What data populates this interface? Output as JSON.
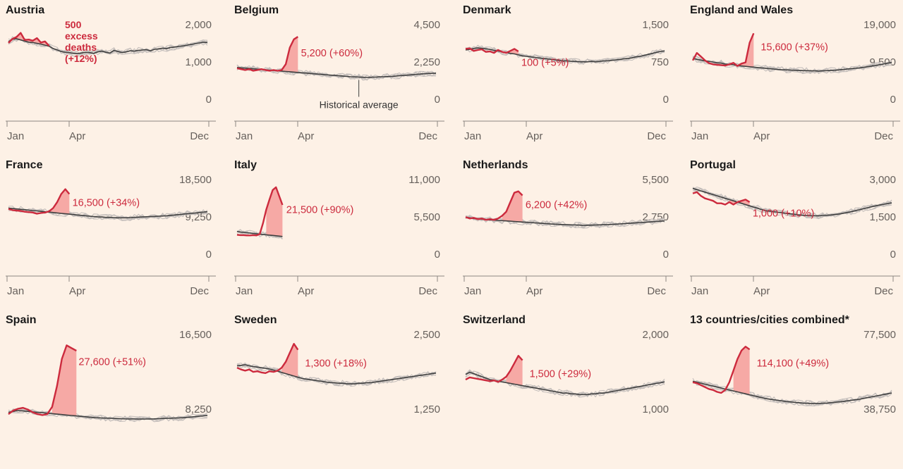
{
  "colors": {
    "background": "#fdf1e6",
    "current_year": "#cc2a3d",
    "excess_fill": "#f6a9a5",
    "average": "#3f3f3f",
    "history": "#c4bebb",
    "axis_text": "#66605c"
  },
  "chart_data": [
    {
      "type": "line",
      "title": "Austria",
      "x_ticks": [
        "Jan",
        "Apr",
        "Dec"
      ],
      "y_ticks": [
        0,
        1000,
        2000
      ],
      "ylim": [
        0,
        2000
      ],
      "peak_week": 3,
      "series": [
        {
          "values": [
            1680,
            1790,
            1840,
            1950,
            1760,
            1770,
            1740,
            1810,
            1690,
            1720,
            1600
          ]
        },
        {
          "values": [
            1720,
            1780,
            1790,
            1760,
            1730,
            1700,
            1690,
            1670,
            1650,
            1620,
            1590,
            1530,
            1490,
            1450,
            1430,
            1420,
            1400,
            1390,
            1410,
            1430,
            1420,
            1400,
            1440,
            1460,
            1430,
            1410,
            1480,
            1450,
            1420,
            1440,
            1470,
            1460,
            1480,
            1490,
            1500,
            1470,
            1510,
            1520,
            1540,
            1530,
            1560,
            1570,
            1590,
            1600,
            1620,
            1640,
            1660,
            1680,
            1700,
            1690
          ]
        }
      ],
      "annotation": {
        "lines": [
          "500",
          "excess",
          "deaths",
          "(+12%)"
        ]
      },
      "grid": false
    },
    {
      "type": "line",
      "title": "Belgium",
      "x_ticks": [
        "Jan",
        "Apr",
        "Dec"
      ],
      "y_ticks": [
        0,
        2250,
        4500
      ],
      "ylim": [
        0,
        4500
      ],
      "peak_week": 14,
      "series": [
        {
          "values": [
            2250,
            2200,
            2150,
            2200,
            2100,
            2150,
            2200,
            2150,
            2100,
            2150,
            2100,
            2150,
            2500,
            3500,
            4000,
            4150
          ]
        },
        {
          "values": [
            2300,
            2280,
            2260,
            2240,
            2220,
            2200,
            2180,
            2160,
            2140,
            2120,
            2100,
            2080,
            2060,
            2040,
            2020,
            2000,
            1980,
            1960,
            1940,
            1920,
            1900,
            1880,
            1860,
            1840,
            1820,
            1800,
            1780,
            1760,
            1740,
            1730,
            1720,
            1710,
            1700,
            1710,
            1720,
            1730,
            1740,
            1750,
            1760,
            1780,
            1800,
            1820,
            1840,
            1860,
            1880,
            1900,
            1920,
            1940,
            1950,
            1950
          ]
        }
      ],
      "annotation": {
        "lines": [
          "5,200 (+60%)"
        ],
        "callout": "Historical average"
      },
      "grid": false
    },
    {
      "type": "line",
      "title": "Denmark",
      "x_ticks": [
        "Jan",
        "Apr",
        "Dec"
      ],
      "y_ticks": [
        0,
        750,
        1500
      ],
      "ylim": [
        0,
        1500
      ],
      "peak_week": 12,
      "series": [
        {
          "values": [
            1140,
            1150,
            1100,
            1120,
            1130,
            1080,
            1090,
            1060,
            1120,
            1080,
            1060,
            1100,
            1140,
            1090
          ]
        },
        {
          "values": [
            1120,
            1130,
            1150,
            1160,
            1150,
            1140,
            1130,
            1110,
            1100,
            1080,
            1070,
            1050,
            1040,
            1020,
            1000,
            990,
            980,
            970,
            960,
            950,
            940,
            930,
            920,
            910,
            900,
            900,
            890,
            890,
            880,
            880,
            880,
            890,
            880,
            890,
            900,
            900,
            910,
            920,
            930,
            940,
            950,
            960,
            980,
            990,
            1010,
            1030,
            1050,
            1070,
            1090,
            1100
          ]
        }
      ],
      "annotation": {
        "lines": [
          "100 (+5%)"
        ]
      },
      "grid": false
    },
    {
      "type": "line",
      "title": "England and Wales",
      "x_ticks": [
        "Jan",
        "Apr",
        "Dec"
      ],
      "y_ticks": [
        0,
        9500,
        19000
      ],
      "ylim": [
        0,
        19000
      ],
      "peak_week": 15,
      "series": [
        {
          "values": [
            11500,
            13400,
            12500,
            11500,
            10800,
            10500,
            10400,
            10300,
            10200,
            10500,
            10900,
            10100,
            10700,
            11000,
            16000,
            18400
          ]
        },
        {
          "values": [
            12000,
            11800,
            11600,
            11400,
            11300,
            11100,
            10900,
            10800,
            10600,
            10500,
            10400,
            10200,
            10100,
            10000,
            9900,
            9800,
            9700,
            9600,
            9500,
            9400,
            9300,
            9200,
            9150,
            9100,
            9050,
            9000,
            8950,
            8900,
            8900,
            8850,
            8850,
            8800,
            8850,
            8900,
            8950,
            9000,
            9100,
            9200,
            9300,
            9400,
            9500,
            9600,
            9750,
            9900,
            10050,
            10200,
            10400,
            10600,
            10800,
            11000
          ]
        }
      ],
      "annotation": {
        "lines": [
          "15,600 (+37%)"
        ]
      },
      "grid": false
    },
    {
      "type": "line",
      "title": "France",
      "x_ticks": [
        "Jan",
        "Apr",
        "Dec"
      ],
      "y_ticks": [
        0,
        9250,
        18500
      ],
      "ylim": [
        0,
        18500
      ],
      "peak_week": 14,
      "series": [
        {
          "values": [
            12800,
            12500,
            12400,
            12300,
            12100,
            12000,
            11900,
            11600,
            11800,
            11900,
            12200,
            13000,
            14500,
            16500,
            17700,
            16500
          ]
        },
        {
          "values": [
            13000,
            12900,
            12800,
            12700,
            12600,
            12500,
            12400,
            12300,
            12200,
            12100,
            12000,
            11900,
            11800,
            11700,
            11600,
            11500,
            11400,
            11300,
            11200,
            11100,
            11000,
            10900,
            10800,
            10800,
            10700,
            10700,
            10650,
            10600,
            10600,
            10600,
            10650,
            10700,
            10750,
            10800,
            10850,
            10900,
            10950,
            11000,
            11050,
            11100,
            11200,
            11300,
            11400,
            11500,
            11600,
            11700,
            11800,
            11900,
            12000,
            12100
          ]
        }
      ],
      "annotation": {
        "lines": [
          "16,500 (+34%)"
        ]
      },
      "grid": false
    },
    {
      "type": "line",
      "title": "Italy",
      "x_ticks": [
        "Jan",
        "Apr",
        "Dec"
      ],
      "y_ticks": [
        0,
        5500,
        11000
      ],
      "ylim": [
        0,
        11000
      ],
      "peak_week": 13,
      "series": [
        {
          "values": [
            3800,
            3750,
            3750,
            3700,
            3700,
            3750,
            3700,
            3900,
            5500,
            7500,
            9000,
            10400,
            10800,
            9500,
            8200
          ]
        },
        {
          "values": [
            4300,
            4200,
            4150,
            4100,
            4050,
            4000,
            3950,
            3900,
            3850,
            3800,
            3750,
            3700,
            3650,
            3600,
            3550
          ]
        }
      ],
      "annotation": {
        "lines": [
          "21,500 (+90%)"
        ]
      },
      "grid": false
    },
    {
      "type": "line",
      "title": "Netherlands",
      "x_ticks": [
        "Jan",
        "Apr",
        "Dec"
      ],
      "y_ticks": [
        0,
        2750,
        5500
      ],
      "ylim": [
        0,
        5500
      ],
      "peak_week": 13,
      "series": [
        {
          "values": [
            3200,
            3100,
            3150,
            3050,
            3100,
            3000,
            3050,
            3000,
            3100,
            3300,
            3600,
            4300,
            5000,
            5100,
            4800
          ]
        },
        {
          "values": [
            3200,
            3150,
            3100,
            3080,
            3050,
            3020,
            3000,
            2980,
            2960,
            2940,
            2920,
            2900,
            2880,
            2860,
            2840,
            2820,
            2800,
            2780,
            2760,
            2740,
            2720,
            2700,
            2680,
            2660,
            2650,
            2640,
            2630,
            2620,
            2610,
            2600,
            2600,
            2610,
            2620,
            2630,
            2640,
            2650,
            2660,
            2680,
            2700,
            2720,
            2740,
            2760,
            2780,
            2800,
            2820,
            2840,
            2860,
            2880,
            2900,
            2920
          ]
        }
      ],
      "annotation": {
        "lines": [
          "6,200 (+42%)"
        ]
      },
      "grid": false
    },
    {
      "type": "line",
      "title": "Portugal",
      "x_ticks": [
        "Jan",
        "Apr",
        "Dec"
      ],
      "y_ticks": [
        0,
        1500,
        3000
      ],
      "ylim": [
        0,
        3000
      ],
      "peak_week": 13,
      "series": [
        {
          "values": [
            2700,
            2750,
            2600,
            2500,
            2450,
            2400,
            2300,
            2300,
            2250,
            2350,
            2250,
            2350,
            2400,
            2450,
            2350
          ]
        },
        {
          "values": [
            2900,
            2850,
            2800,
            2750,
            2700,
            2650,
            2600,
            2550,
            2500,
            2450,
            2400,
            2350,
            2300,
            2250,
            2200,
            2150,
            2100,
            2050,
            2000,
            1980,
            1960,
            1940,
            1920,
            1900,
            1880,
            1860,
            1840,
            1820,
            1810,
            1800,
            1800,
            1800,
            1810,
            1820,
            1830,
            1850,
            1870,
            1900,
            1930,
            1960,
            2000,
            2040,
            2080,
            2120,
            2160,
            2200,
            2230,
            2260,
            2290,
            2320
          ]
        }
      ],
      "annotation": {
        "lines": [
          "1,000 (+10%)"
        ]
      },
      "grid": false
    },
    {
      "type": "line",
      "title": "Spain",
      "x_ticks": [
        "Jan",
        "Apr",
        "Dec"
      ],
      "y_ticks": [
        8250,
        16500
      ],
      "ylim": [
        8250,
        16500
      ],
      "peak_week": 13,
      "series": [
        {
          "values": [
            8400,
            8800,
            9000,
            9100,
            8900,
            8600,
            8400,
            8300,
            8400,
            9200,
            11500,
            14500,
            16000,
            15700,
            15400
          ]
        },
        {
          "values": [
            8600,
            8700,
            8800,
            8750,
            8700,
            8650,
            8600,
            8550,
            8500,
            8450,
            8400,
            8350,
            8300,
            8250,
            8200,
            8150,
            8100,
            8050,
            8000,
            7980,
            7960,
            7940,
            7920,
            7900,
            7880,
            7870,
            7860,
            7850,
            7860,
            7870,
            7880,
            7900,
            7920,
            7940,
            7960,
            7980,
            8000,
            8050,
            8100,
            8150,
            8200,
            8250
          ]
        }
      ],
      "annotation": {
        "lines": [
          "27,600 (+51%)"
        ]
      },
      "grid": false
    },
    {
      "type": "line",
      "title": "Sweden",
      "x_ticks": [
        "Jan",
        "Apr",
        "Dec"
      ],
      "y_ticks": [
        1250,
        2500
      ],
      "ylim": [
        1250,
        2500
      ],
      "peak_week": 15,
      "series": [
        {
          "values": [
            2050,
            2020,
            2000,
            2020,
            1980,
            1990,
            1970,
            1960,
            1990,
            1980,
            2000,
            2050,
            2150,
            2300,
            2450,
            2350
          ]
        },
        {
          "values": [
            2080,
            2090,
            2100,
            2080,
            2070,
            2060,
            2050,
            2040,
            2030,
            2010,
            1990,
            1970,
            1950,
            1930,
            1910,
            1890,
            1870,
            1860,
            1850,
            1840,
            1830,
            1820,
            1810,
            1800,
            1800,
            1790,
            1790,
            1780,
            1780,
            1780,
            1790,
            1790,
            1800,
            1800,
            1810,
            1820,
            1830,
            1840,
            1850,
            1860,
            1870,
            1880,
            1890,
            1900,
            1910,
            1920,
            1930,
            1940,
            1950,
            1960
          ]
        }
      ],
      "annotation": {
        "lines": [
          "1,300 (+18%)"
        ]
      },
      "grid": false
    },
    {
      "type": "line",
      "title": "Switzerland",
      "x_ticks": [
        "Jan",
        "Apr",
        "Dec"
      ],
      "y_ticks": [
        1000,
        2000
      ],
      "ylim": [
        1000,
        2000
      ],
      "peak_week": 14,
      "series": [
        {
          "values": [
            1480,
            1510,
            1500,
            1490,
            1480,
            1470,
            1460,
            1470,
            1450,
            1480,
            1520,
            1600,
            1700,
            1800,
            1740
          ]
        },
        {
          "values": [
            1550,
            1580,
            1560,
            1540,
            1520,
            1500,
            1480,
            1470,
            1460,
            1450,
            1440,
            1430,
            1420,
            1410,
            1400,
            1390,
            1380,
            1370,
            1360,
            1350,
            1340,
            1330,
            1320,
            1310,
            1300,
            1300,
            1290,
            1290,
            1280,
            1280,
            1280,
            1290,
            1290,
            1300,
            1300,
            1310,
            1320,
            1330,
            1340,
            1350,
            1360,
            1370,
            1380,
            1390,
            1400,
            1410,
            1420,
            1430,
            1440,
            1450
          ]
        }
      ],
      "annotation": {
        "lines": [
          "1,500 (+29%)"
        ]
      },
      "grid": false
    },
    {
      "type": "line",
      "title": "13 countries/cities combined*",
      "x_ticks": [],
      "y_ticks": [
        38750,
        77500
      ],
      "ylim": [
        38750,
        77500
      ],
      "peak_week": 14,
      "series": [
        {
          "values": [
            56000,
            55500,
            54500,
            53500,
            52500,
            52000,
            51000,
            50500,
            52000,
            56000,
            62000,
            68000,
            72500,
            74500,
            73000
          ]
        },
        {
          "values": [
            56500,
            56000,
            55500,
            55000,
            54500,
            54000,
            53500,
            53000,
            52500,
            52000,
            51500,
            51000,
            50500,
            50000,
            49500,
            49000,
            48500,
            48000,
            47500,
            47200,
            46900,
            46600,
            46300,
            46000,
            45800,
            45600,
            45400,
            45200,
            45100,
            45000,
            45000,
            45000,
            45100,
            45200,
            45400,
            45600,
            45800,
            46000,
            46300,
            46600,
            46900,
            47200,
            47600,
            48000,
            48400,
            48800,
            49200,
            49600,
            50000,
            50400
          ]
        }
      ],
      "annotation": {
        "lines": [
          "114,100 (+49%)"
        ]
      },
      "grid": false
    }
  ]
}
